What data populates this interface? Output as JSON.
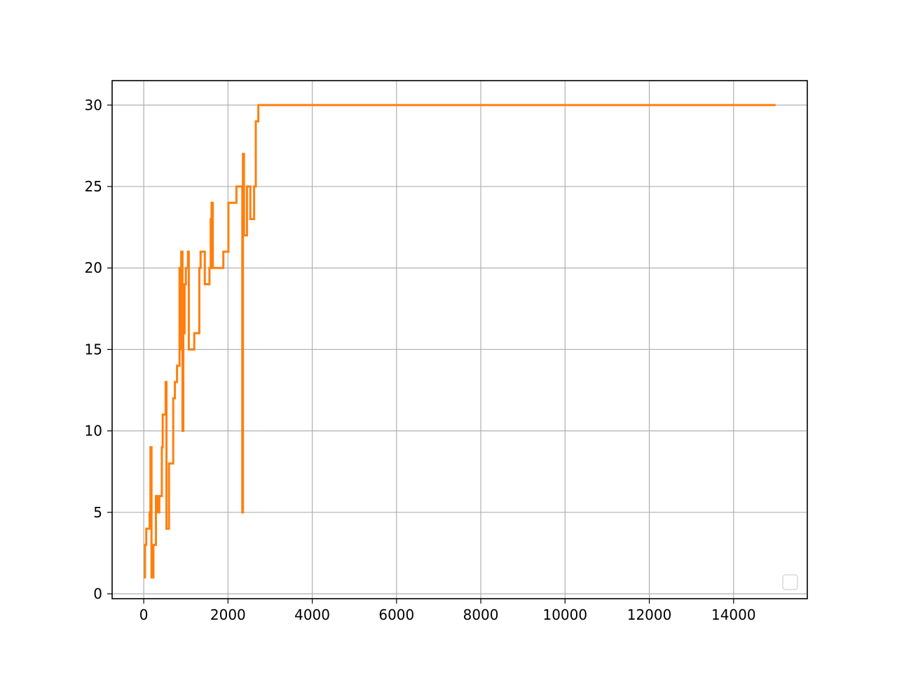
{
  "chart_data": {
    "type": "line",
    "title": "",
    "xlabel": "",
    "ylabel": "",
    "xlim": [
      -750,
      15750
    ],
    "ylim": [
      -0.3,
      31.5
    ],
    "xticks": [
      0,
      2000,
      4000,
      6000,
      8000,
      10000,
      12000,
      14000
    ],
    "yticks": [
      0,
      5,
      10,
      15,
      20,
      25,
      30
    ],
    "grid": true,
    "legend": "bottom-right, empty",
    "series": [
      {
        "color": "#ff7f0e",
        "step": true,
        "points": [
          [
            0,
            1
          ],
          [
            30,
            3
          ],
          [
            60,
            4
          ],
          [
            140,
            5
          ],
          [
            160,
            9
          ],
          [
            185,
            1
          ],
          [
            230,
            3
          ],
          [
            290,
            6
          ],
          [
            330,
            5
          ],
          [
            370,
            6
          ],
          [
            430,
            9
          ],
          [
            450,
            11
          ],
          [
            520,
            13
          ],
          [
            540,
            4
          ],
          [
            600,
            8
          ],
          [
            700,
            12
          ],
          [
            740,
            13
          ],
          [
            790,
            14
          ],
          [
            850,
            20
          ],
          [
            870,
            15
          ],
          [
            890,
            21
          ],
          [
            920,
            10
          ],
          [
            940,
            16
          ],
          [
            970,
            19
          ],
          [
            1000,
            20
          ],
          [
            1050,
            21
          ],
          [
            1070,
            15
          ],
          [
            1200,
            16
          ],
          [
            1320,
            20
          ],
          [
            1350,
            21
          ],
          [
            1450,
            19
          ],
          [
            1560,
            20
          ],
          [
            1590,
            23
          ],
          [
            1610,
            24
          ],
          [
            1640,
            20
          ],
          [
            1890,
            21
          ],
          [
            2010,
            24
          ],
          [
            2200,
            25
          ],
          [
            2340,
            5
          ],
          [
            2355,
            27
          ],
          [
            2380,
            22
          ],
          [
            2450,
            25
          ],
          [
            2530,
            23
          ],
          [
            2620,
            25
          ],
          [
            2660,
            29
          ],
          [
            2720,
            30
          ],
          [
            15000,
            30
          ]
        ]
      }
    ]
  }
}
